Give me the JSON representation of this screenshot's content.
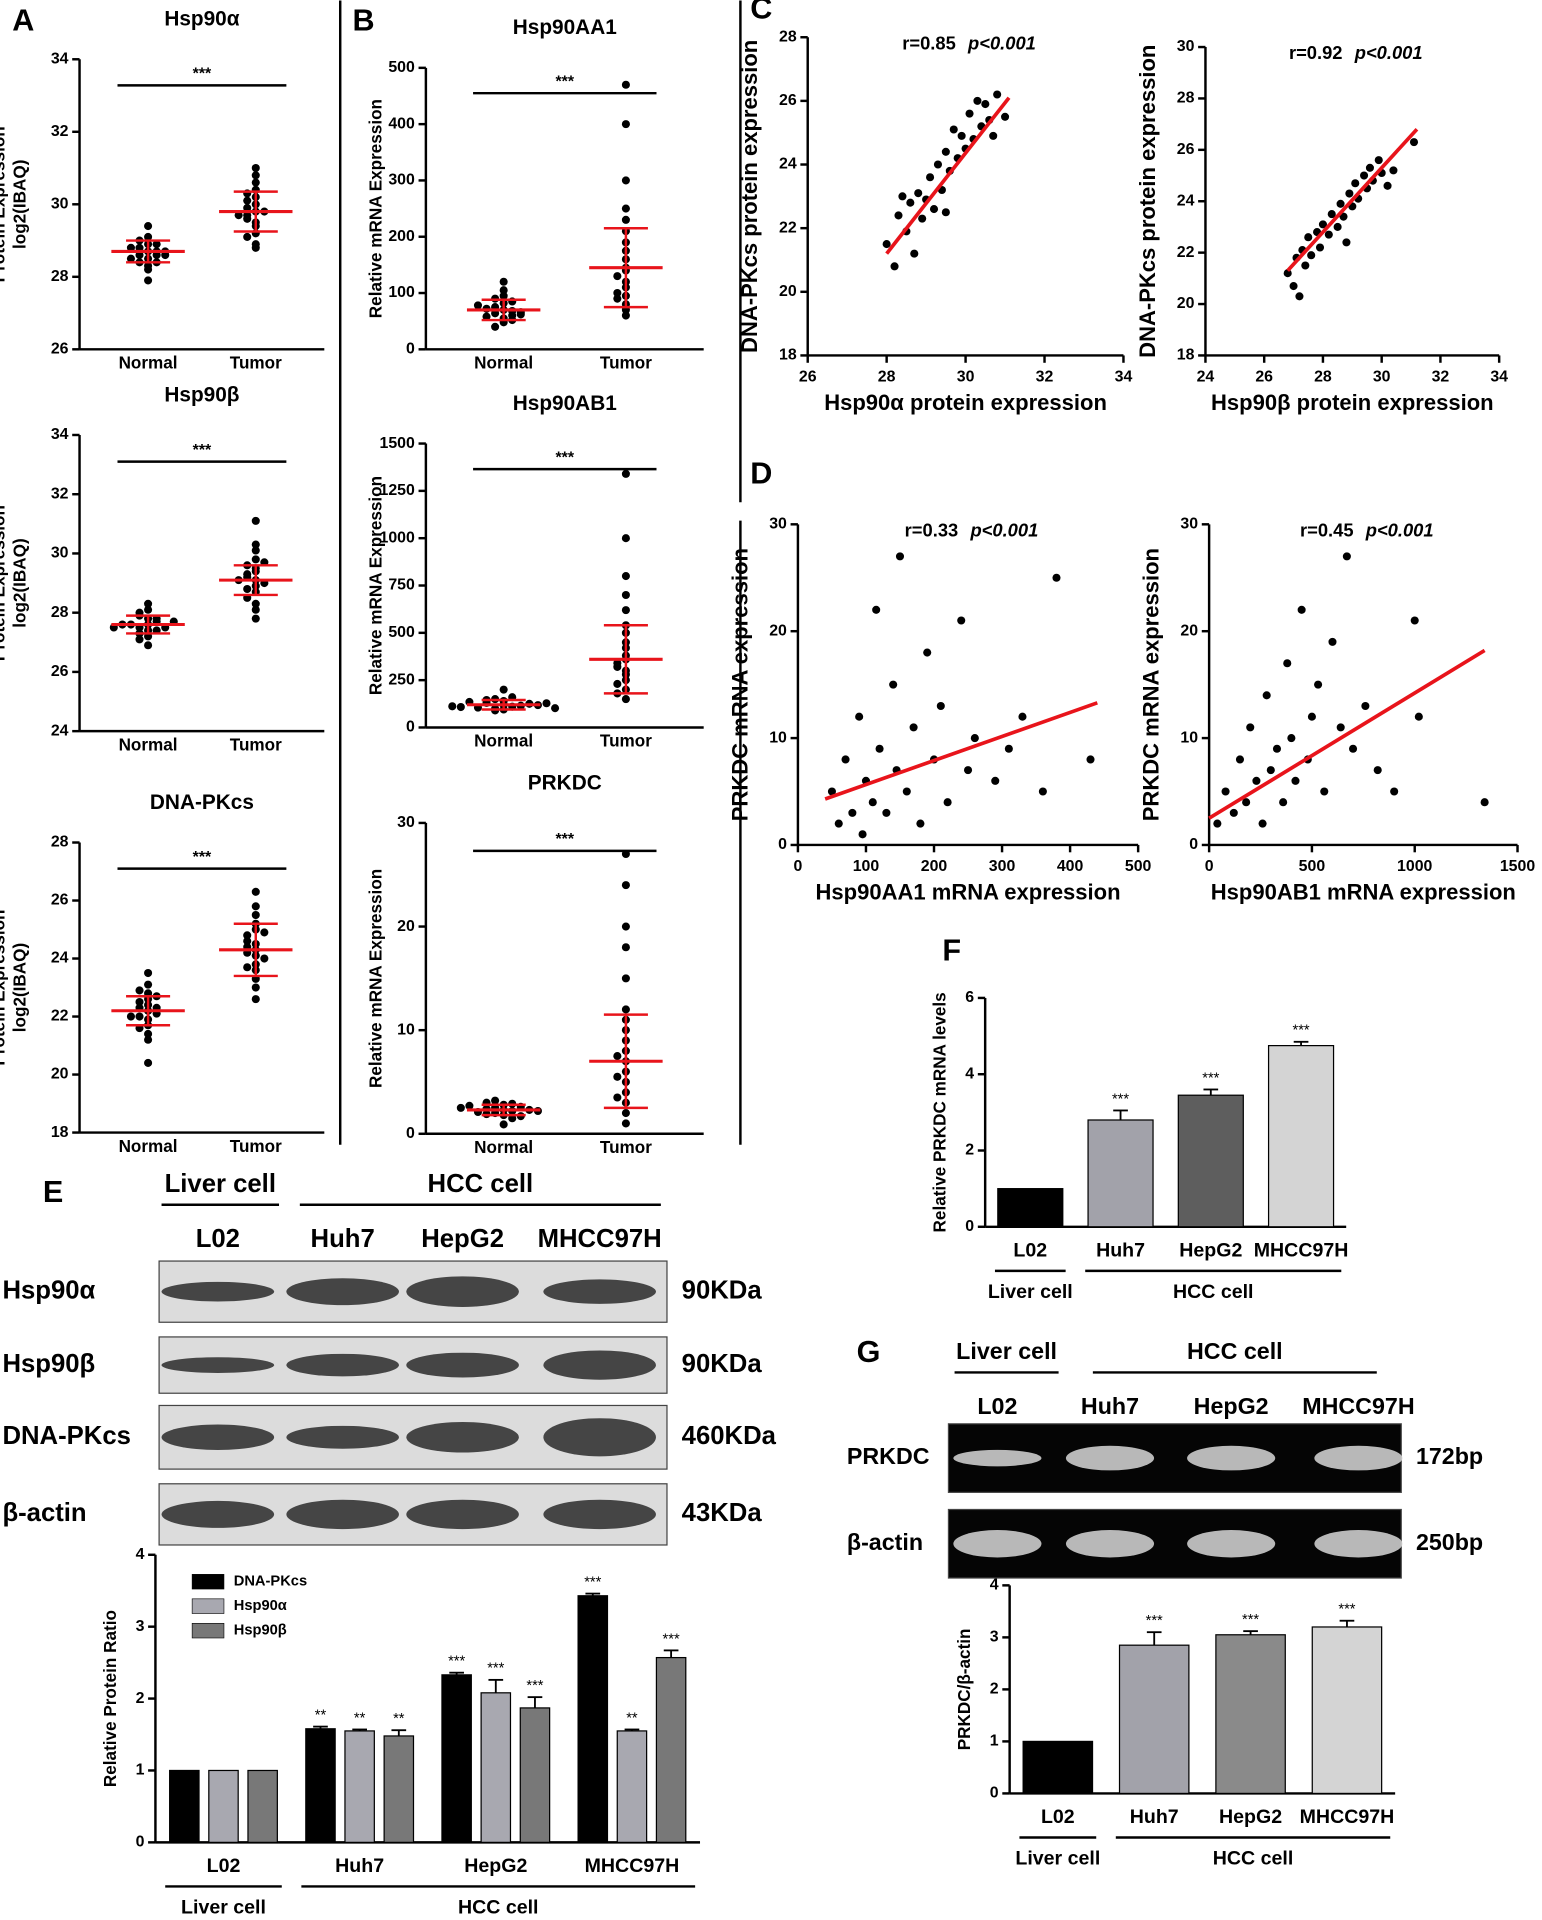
{
  "panel_labels": [
    "A",
    "B",
    "C",
    "D",
    "E",
    "F",
    "G"
  ],
  "chart_data": [
    {
      "type": "dotplot",
      "title": "Hsp90α",
      "ylabel": [
        "Protein Expression",
        "log2(IBAQ)"
      ],
      "categories": [
        "Normal",
        "Tumor"
      ],
      "significance": "***",
      "values": [
        [
          28.7,
          28.5,
          28.9,
          28.6,
          28.8,
          28.3,
          29.1,
          28.4,
          28.7,
          28.6,
          29.0,
          28.2,
          28.8,
          28.5,
          29.4,
          27.9,
          28.7,
          28.6,
          28.9,
          28.4
        ],
        [
          29.8,
          30.2,
          29.5,
          30.6,
          29.2,
          30.0,
          29.7,
          31.0,
          28.9,
          30.4,
          29.6,
          29.9,
          30.8,
          29.4,
          30.1,
          29.1,
          29.8,
          30.3,
          28.8,
          29.7
        ]
      ],
      "mean": [
        28.7,
        29.8
      ],
      "sd": [
        0.3,
        0.55
      ],
      "color": "#000000",
      "stat_color": "#e8141b",
      "ylim": [
        26,
        34
      ],
      "yticks": [
        26,
        28,
        30,
        32,
        34
      ]
    },
    {
      "type": "dotplot",
      "title": "Hsp90β",
      "ylabel": [
        "Protein Expression",
        "log2(IBAQ)"
      ],
      "categories": [
        "Normal",
        "Tumor"
      ],
      "significance": "***",
      "values": [
        [
          27.6,
          27.4,
          27.8,
          27.5,
          28.1,
          27.2,
          27.7,
          27.9,
          27.3,
          27.6,
          28.3,
          26.9,
          27.5,
          27.8,
          27.6,
          27.1,
          28.0,
          27.4,
          27.7,
          27.5
        ],
        [
          29.1,
          29.5,
          28.7,
          29.8,
          28.3,
          29.2,
          30.1,
          28.9,
          29.4,
          27.8,
          29.0,
          29.6,
          28.5,
          31.1,
          29.3,
          28.8,
          29.7,
          29.1,
          28.1,
          30.3
        ]
      ],
      "mean": [
        27.6,
        29.1
      ],
      "sd": [
        0.3,
        0.5
      ],
      "color": "#000000",
      "stat_color": "#e8141b",
      "ylim": [
        24,
        34
      ],
      "yticks": [
        24,
        26,
        28,
        30,
        32,
        34
      ]
    },
    {
      "type": "dotplot",
      "title": "DNA-PKcs",
      "ylabel": [
        "Protein Expression",
        "log2(IBAQ)"
      ],
      "categories": [
        "Normal",
        "Tumor"
      ],
      "significance": "***",
      "values": [
        [
          22.2,
          21.7,
          22.6,
          22.0,
          23.1,
          21.4,
          22.4,
          22.8,
          21.9,
          22.3,
          20.4,
          22.1,
          23.5,
          21.6,
          22.5,
          22.0,
          22.9,
          21.2,
          22.3,
          22.7
        ],
        [
          24.3,
          25.0,
          23.6,
          24.8,
          23.0,
          24.5,
          26.3,
          24.1,
          22.6,
          25.5,
          24.2,
          23.8,
          25.8,
          24.6,
          23.3,
          24.0,
          25.2,
          24.4,
          23.7,
          24.9
        ]
      ],
      "mean": [
        22.2,
        24.3
      ],
      "sd": [
        0.5,
        0.9
      ],
      "color": "#000000",
      "stat_color": "#e8141b",
      "ylim": [
        18,
        28
      ],
      "yticks": [
        18,
        20,
        22,
        24,
        26,
        28
      ]
    },
    {
      "type": "dotplot",
      "title": "Hsp90AA1",
      "ylabel": "Relative mRNA Expression",
      "categories": [
        "Normal",
        "Tumor"
      ],
      "significance": "***",
      "values": [
        [
          70,
          55,
          82,
          64,
          120,
          48,
          75,
          90,
          60,
          68,
          105,
          40,
          72,
          58,
          85,
          66,
          78,
          52,
          95,
          62
        ],
        [
          145,
          80,
          210,
          120,
          95,
          300,
          160,
          60,
          250,
          130,
          400,
          175,
          110,
          470,
          90,
          190,
          140,
          70,
          230,
          100
        ]
      ],
      "mean": [
        70,
        145
      ],
      "sd": [
        18,
        70
      ],
      "color": "#000000",
      "stat_color": "#e8141b",
      "ylim": [
        0,
        500
      ],
      "yticks": [
        0,
        100,
        200,
        300,
        400,
        500
      ]
    },
    {
      "type": "dotplot",
      "title": "Hsp90AB1",
      "ylabel": "Relative mRNA Expression",
      "categories": [
        "Normal",
        "Tumor"
      ],
      "significance": "***",
      "values": [
        [
          120,
          100,
          140,
          110,
          200,
          95,
          130,
          115,
          150,
          105,
          125,
          90,
          135,
          118,
          160,
          108,
          128,
          112,
          145,
          102
        ],
        [
          360,
          200,
          540,
          300,
          150,
          700,
          420,
          250,
          1000,
          380,
          180,
          620,
          320,
          1340,
          280,
          450,
          230,
          800,
          340,
          500
        ]
      ],
      "mean": [
        120,
        360
      ],
      "sd": [
        25,
        180
      ],
      "color": "#000000",
      "stat_color": "#e8141b",
      "ylim": [
        0,
        1500
      ],
      "yticks": [
        0,
        250,
        500,
        750,
        1000,
        1250,
        1500
      ]
    },
    {
      "type": "dotplot",
      "title": "PRKDC",
      "ylabel": "Relative mRNA Expression",
      "categories": [
        "Normal",
        "Tumor"
      ],
      "significance": "***",
      "values": [
        [
          2.3,
          1.8,
          2.8,
          2.0,
          3.2,
          1.5,
          2.5,
          2.2,
          2.9,
          1.9,
          2.4,
          0.9,
          2.6,
          2.1,
          3.0,
          2.3,
          1.7,
          2.7,
          2.2,
          2.5
        ],
        [
          7,
          3,
          11,
          5,
          2,
          15,
          8,
          4,
          20,
          6,
          27,
          9,
          1,
          12,
          5.5,
          18,
          7.5,
          3.5,
          10,
          24
        ]
      ],
      "mean": [
        2.3,
        7
      ],
      "sd": [
        0.5,
        4.5
      ],
      "color": "#000000",
      "stat_color": "#e8141b",
      "ylim": [
        0,
        30
      ],
      "yticks": [
        0,
        10,
        20,
        30
      ]
    },
    {
      "type": "scatter",
      "xlabel": "Hsp90α protein expression",
      "ylabel": "DNA-PKcs protein expression",
      "stats": [
        "r=0.85",
        "p<0.001"
      ],
      "x": [
        28.0,
        28.2,
        28.3,
        28.5,
        28.6,
        28.7,
        28.8,
        28.9,
        29.0,
        29.1,
        29.2,
        29.3,
        29.4,
        29.5,
        29.6,
        29.7,
        29.8,
        29.9,
        30.0,
        30.1,
        30.2,
        30.3,
        30.4,
        30.5,
        30.6,
        30.7,
        30.8,
        31.0,
        28.4,
        29.5
      ],
      "y": [
        21.5,
        20.8,
        22.4,
        21.9,
        22.8,
        21.2,
        23.1,
        22.3,
        22.9,
        23.6,
        22.6,
        24.0,
        23.2,
        24.4,
        23.8,
        25.1,
        24.2,
        24.9,
        24.5,
        25.6,
        24.8,
        26.0,
        25.2,
        25.9,
        25.4,
        24.9,
        26.2,
        25.5,
        23.0,
        22.5
      ],
      "fit": {
        "x": [
          28,
          31.1
        ],
        "y": [
          21.2,
          26.1
        ]
      },
      "color": "#000000",
      "fit_color": "#e8141b",
      "xlim": [
        26,
        34
      ],
      "ylim": [
        18,
        28
      ],
      "xticks": [
        26,
        28,
        30,
        32,
        34
      ],
      "yticks": [
        18,
        20,
        22,
        24,
        26,
        28
      ]
    },
    {
      "type": "scatter",
      "xlabel": "Hsp90β protein expression",
      "ylabel": "DNA-PKcs protein expression",
      "stats": [
        "r=0.92",
        "p<0.001"
      ],
      "x": [
        26.8,
        27.0,
        27.1,
        27.3,
        27.4,
        27.5,
        27.6,
        27.8,
        27.9,
        28.0,
        28.2,
        28.3,
        28.5,
        28.6,
        28.7,
        28.9,
        29.0,
        29.1,
        29.2,
        29.4,
        29.5,
        29.6,
        29.7,
        29.9,
        30.0,
        30.2,
        30.4,
        31.1,
        27.2,
        28.8
      ],
      "y": [
        21.2,
        20.7,
        21.8,
        22.1,
        21.5,
        22.6,
        21.9,
        22.8,
        22.2,
        23.1,
        22.7,
        23.5,
        23.0,
        23.9,
        23.4,
        24.3,
        23.8,
        24.7,
        24.1,
        25.0,
        24.5,
        25.3,
        24.8,
        25.6,
        25.1,
        24.6,
        25.2,
        26.3,
        20.3,
        22.4
      ],
      "fit": {
        "x": [
          26.8,
          31.2
        ],
        "y": [
          21.3,
          26.8
        ]
      },
      "color": "#000000",
      "fit_color": "#e8141b",
      "xlim": [
        24,
        34
      ],
      "ylim": [
        18,
        30
      ],
      "xticks": [
        24,
        26,
        28,
        30,
        32,
        34
      ],
      "yticks": [
        18,
        20,
        22,
        24,
        26,
        28,
        30
      ]
    },
    {
      "type": "scatter",
      "xlabel": "Hsp90AA1 mRNA expression",
      "ylabel": "PRKDC mRNA expression",
      "stats": [
        "r=0.33",
        "p<0.001"
      ],
      "x": [
        50,
        60,
        70,
        80,
        90,
        95,
        100,
        110,
        115,
        120,
        130,
        140,
        145,
        150,
        160,
        170,
        180,
        190,
        200,
        210,
        220,
        240,
        250,
        260,
        290,
        310,
        330,
        360,
        380,
        430
      ],
      "y": [
        5,
        2,
        8,
        3,
        12,
        1,
        6,
        4,
        22,
        9,
        3,
        15,
        7,
        27,
        5,
        11,
        2,
        18,
        8,
        13,
        4,
        21,
        7,
        10,
        6,
        9,
        12,
        5,
        25,
        8
      ],
      "fit": {
        "x": [
          40,
          440
        ],
        "y": [
          4.3,
          13.3
        ]
      },
      "color": "#000000",
      "fit_color": "#e8141b",
      "xlim": [
        0,
        500
      ],
      "ylim": [
        0,
        30
      ],
      "xticks": [
        0,
        100,
        200,
        300,
        400,
        500
      ],
      "yticks": [
        0,
        10,
        20,
        30
      ]
    },
    {
      "type": "scatter",
      "xlabel": "Hsp90AB1 mRNA expression",
      "ylabel": "PRKDC mRNA expression",
      "stats": [
        "r=0.45",
        "p<0.001"
      ],
      "x": [
        40,
        80,
        120,
        150,
        180,
        200,
        230,
        260,
        280,
        300,
        330,
        360,
        380,
        400,
        420,
        450,
        480,
        500,
        530,
        560,
        600,
        640,
        670,
        700,
        760,
        820,
        900,
        1000,
        1020,
        1340
      ],
      "y": [
        2,
        5,
        3,
        8,
        4,
        11,
        6,
        2,
        14,
        7,
        9,
        4,
        17,
        10,
        6,
        22,
        8,
        12,
        15,
        5,
        19,
        11,
        27,
        9,
        13,
        7,
        5,
        21,
        12,
        4
      ],
      "fit": {
        "x": [
          0,
          1340
        ],
        "y": [
          2.5,
          18.2
        ]
      },
      "color": "#000000",
      "fit_color": "#e8141b",
      "xlim": [
        0,
        1500
      ],
      "ylim": [
        0,
        30
      ],
      "xticks": [
        0,
        500,
        1000,
        1500
      ],
      "yticks": [
        0,
        10,
        20,
        30
      ]
    },
    {
      "type": "bar",
      "ylabel": "Relative PRKDC mRNA levels",
      "categories": [
        "L02",
        "Huh7",
        "HepG2",
        "MHCC97H"
      ],
      "group_labels": [
        "Liver cell",
        "HCC cell"
      ],
      "series": [
        {
          "values": [
            1,
            2.8,
            3.45,
            4.75
          ],
          "errors": [
            0,
            0.25,
            0.15,
            0.1
          ],
          "significance": [
            null,
            "***",
            "***",
            "***"
          ],
          "colors": [
            "#000000",
            "#a2a2aa",
            "#5e5e5e",
            "#d4d4d4"
          ]
        }
      ],
      "ylim": [
        0,
        6
      ],
      "yticks": [
        0,
        2,
        4,
        6
      ]
    },
    {
      "type": "bar",
      "ylabel": "Relative Protein Ratio",
      "categories": [
        "L02",
        "Huh7",
        "HepG2",
        "MHCC97H"
      ],
      "group_labels": [
        "Liver cell",
        "HCC cell"
      ],
      "legend": "top-left",
      "series": [
        {
          "name": "DNA-PKcs",
          "color": "#000000",
          "values": [
            1,
            1.58,
            2.33,
            3.43
          ],
          "errors": [
            0,
            0.03,
            0.03,
            0.03
          ],
          "significance": [
            null,
            "**",
            "***",
            "***"
          ]
        },
        {
          "name": "Hsp90α",
          "color": "#a8a8b0",
          "values": [
            1,
            1.55,
            2.08,
            1.55
          ],
          "errors": [
            0,
            0.02,
            0.18,
            0.02
          ],
          "significance": [
            null,
            "**",
            "***",
            "**"
          ]
        },
        {
          "name": "Hsp90β",
          "color": "#787878",
          "values": [
            1,
            1.48,
            1.87,
            2.57
          ],
          "errors": [
            0,
            0.08,
            0.15,
            0.1
          ],
          "significance": [
            null,
            "**",
            "***",
            "***"
          ]
        }
      ],
      "ylim": [
        0,
        4
      ],
      "yticks": [
        0,
        1,
        2,
        3,
        4
      ]
    },
    {
      "type": "bar",
      "ylabel": "PRKDC/β-actin",
      "categories": [
        "L02",
        "Huh7",
        "HepG2",
        "MHCC97H"
      ],
      "group_labels": [
        "Liver cell",
        "HCC cell"
      ],
      "series": [
        {
          "values": [
            1,
            2.85,
            3.05,
            3.2
          ],
          "errors": [
            0,
            0.25,
            0.07,
            0.12
          ],
          "significance": [
            null,
            "***",
            "***",
            "***"
          ],
          "colors": [
            "#000000",
            "#a2a2aa",
            "#8a8a8a",
            "#d4d4d4"
          ]
        }
      ],
      "ylim": [
        0,
        4
      ],
      "yticks": [
        0,
        1,
        2,
        3,
        4
      ]
    }
  ],
  "blots": [
    {
      "group_labels": [
        "Liver cell",
        "HCC cell"
      ],
      "lanes": [
        "L02",
        "Huh7",
        "HepG2",
        "MHCC97H"
      ],
      "rows": [
        {
          "label": "Hsp90α",
          "size": "90KDa"
        },
        {
          "label": "Hsp90β",
          "size": "90KDa"
        },
        {
          "label": "DNA-PKcs",
          "size": "460KDa"
        },
        {
          "label": "β-actin",
          "size": "43KDa"
        }
      ]
    },
    {
      "group_labels": [
        "Liver cell",
        "HCC cell"
      ],
      "lanes": [
        "L02",
        "Huh7",
        "HepG2",
        "MHCC97H"
      ],
      "rows": [
        {
          "label": "PRKDC",
          "size": "172bp"
        },
        {
          "label": "β-actin",
          "size": "250bp"
        }
      ]
    }
  ]
}
